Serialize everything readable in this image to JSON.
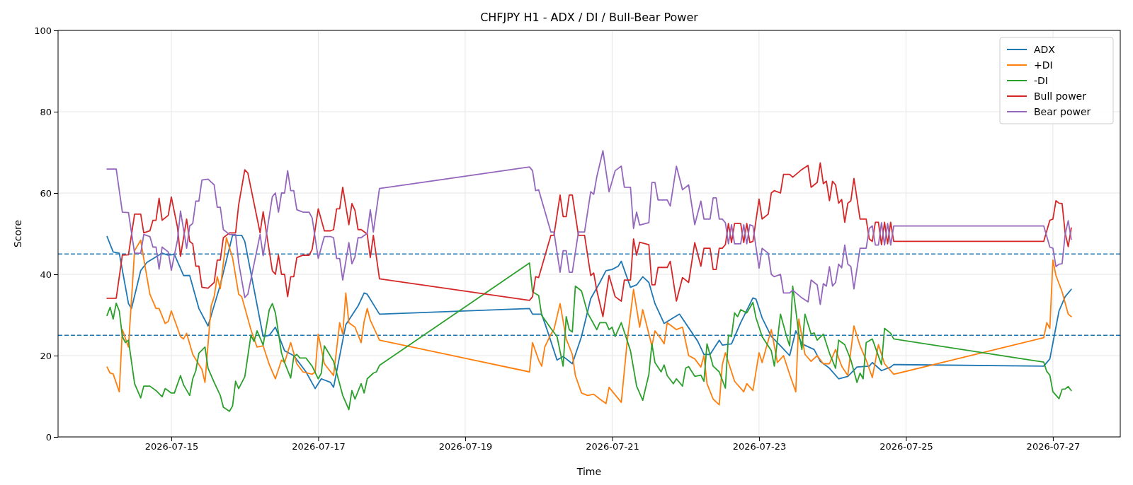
{
  "chart_data": {
    "type": "line",
    "title": "CHFJPY H1 - ADX / DI / Bull-Bear Power",
    "xlabel": "Time",
    "ylabel": "Score",
    "xlim": [
      "2026-07-13T11:00",
      "2026-07-27T22:00"
    ],
    "ylim": [
      0,
      100
    ],
    "xticks": [
      "2026-07-15",
      "2026-07-17",
      "2026-07-19",
      "2026-07-21",
      "2026-07-23",
      "2026-07-25",
      "2026-07-27"
    ],
    "yticks": [
      0,
      20,
      40,
      60,
      80,
      100
    ],
    "grid": true,
    "legend": "top right",
    "ref_lines": [
      {
        "axis": "y",
        "value": 45,
        "color": "#1f77b4",
        "line_style": "dashed"
      },
      {
        "axis": "y",
        "value": 25,
        "color": "#1f77b4",
        "line_style": "dashed"
      }
    ],
    "series": [
      {
        "name": "ADX",
        "color": "#1f77b4",
        "x": [
          "2026-07-14T03:00",
          "2026-07-14T05:00",
          "2026-07-14T07:00",
          "2026-07-14T10:00",
          "2026-07-14T11:00",
          "2026-07-14T14:00",
          "2026-07-14T16:00",
          "2026-07-14T21:00",
          "2026-07-14T23:00",
          "2026-07-15T01:00",
          "2026-07-15T04:00",
          "2026-07-15T06:00",
          "2026-07-15T09:00",
          "2026-07-15T12:00",
          "2026-07-15T16:00",
          "2026-07-15T20:00",
          "2026-07-15T23:00",
          "2026-07-16T00:00",
          "2026-07-16T06:00",
          "2026-07-16T08:00",
          "2026-07-16T10:00",
          "2026-07-16T13:00",
          "2026-07-16T16:00",
          "2026-07-16T20:00",
          "2026-07-16T23:00",
          "2026-07-17T01:00",
          "2026-07-17T04:00",
          "2026-07-17T05:00",
          "2026-07-17T09:00",
          "2026-07-17T13:00",
          "2026-07-17T15:00",
          "2026-07-17T16:00",
          "2026-07-17T20:00",
          "2026-07-19T21:00",
          "2026-07-19T22:00",
          "2026-07-20T01:00",
          "2026-07-20T03:00",
          "2026-07-20T06:00",
          "2026-07-20T08:00",
          "2026-07-20T11:00",
          "2026-07-20T14:00",
          "2026-07-20T17:00",
          "2026-07-20T20:00",
          "2026-07-20T22:00",
          "2026-07-21T00:00",
          "2026-07-21T02:00",
          "2026-07-21T03:00",
          "2026-07-21T06:00",
          "2026-07-21T08:00",
          "2026-07-21T10:00",
          "2026-07-21T12:00",
          "2026-07-21T14:00",
          "2026-07-21T17:00",
          "2026-07-21T20:00",
          "2026-07-21T22:00",
          "2026-07-22T04:00",
          "2026-07-22T06:00",
          "2026-07-22T08:00",
          "2026-07-22T11:00",
          "2026-07-22T12:00",
          "2026-07-22T15:00",
          "2026-07-22T18:00",
          "2026-07-22T22:00",
          "2026-07-22T23:00",
          "2026-07-23T01:00",
          "2026-07-23T04:00",
          "2026-07-23T07:00",
          "2026-07-23T10:00",
          "2026-07-23T12:00",
          "2026-07-23T14:00",
          "2026-07-23T18:00",
          "2026-07-23T20:00",
          "2026-07-23T23:00",
          "2026-07-24T02:00",
          "2026-07-24T05:00",
          "2026-07-24T08:00",
          "2026-07-24T12:00",
          "2026-07-24T13:00",
          "2026-07-24T16:00",
          "2026-07-24T19:00",
          "2026-07-24T20:00",
          "2026-07-26T21:00",
          "2026-07-26T23:00",
          "2026-07-27T02:00",
          "2026-07-27T04:00",
          "2026-07-27T06:00"
        ],
        "values": [
          49.3,
          45.5,
          45.2,
          32.8,
          31.6,
          40.9,
          42.9,
          45.2,
          44.7,
          44.9,
          39.7,
          39.7,
          31.6,
          27.3,
          37.4,
          49.6,
          49.6,
          48.1,
          24.7,
          25.0,
          27.0,
          21.2,
          20.0,
          16.0,
          11.9,
          14.3,
          13.4,
          12.2,
          27.6,
          32.2,
          35.4,
          35.1,
          30.2,
          31.6,
          30.2,
          30.2,
          25.8,
          18.9,
          19.8,
          18.0,
          24.7,
          34.0,
          38.0,
          40.9,
          41.2,
          42.0,
          43.2,
          36.8,
          37.4,
          39.4,
          38.0,
          32.8,
          27.9,
          29.3,
          30.2,
          23.5,
          20.3,
          20.3,
          23.8,
          22.6,
          22.9,
          28.1,
          34.2,
          33.9,
          29.3,
          24.7,
          22.4,
          20.0,
          26.1,
          22.9,
          21.5,
          18.6,
          16.9,
          14.3,
          14.9,
          17.2,
          17.4,
          18.3,
          16.3,
          17.2,
          17.8,
          17.4,
          19.2,
          31.0,
          34.5,
          36.3
        ]
      },
      {
        "name": "+DI",
        "color": "#ff7f0e",
        "x": [
          "2026-07-14T03:00",
          "2026-07-14T04:00",
          "2026-07-14T05:00",
          "2026-07-14T07:00",
          "2026-07-14T08:00",
          "2026-07-14T10:00",
          "2026-07-14T12:00",
          "2026-07-14T14:00",
          "2026-07-14T15:00",
          "2026-07-14T17:00",
          "2026-07-14T19:00",
          "2026-07-14T20:00",
          "2026-07-14T22:00",
          "2026-07-14T23:00",
          "2026-07-15T00:00",
          "2026-07-15T03:00",
          "2026-07-15T04:00",
          "2026-07-15T05:00",
          "2026-07-15T07:00",
          "2026-07-15T10:00",
          "2026-07-15T11:00",
          "2026-07-15T13:00",
          "2026-07-15T14:00",
          "2026-07-15T15:00",
          "2026-07-15T16:00",
          "2026-07-15T18:00",
          "2026-07-15T20:00",
          "2026-07-15T22:00",
          "2026-07-15T23:00",
          "2026-07-16T02:00",
          "2026-07-16T04:00",
          "2026-07-16T06:00",
          "2026-07-16T08:00",
          "2026-07-16T10:00",
          "2026-07-16T12:00",
          "2026-07-16T13:00",
          "2026-07-16T15:00",
          "2026-07-16T17:00",
          "2026-07-16T19:00",
          "2026-07-16T22:00",
          "2026-07-16T23:00",
          "2026-07-17T00:00",
          "2026-07-17T02:00",
          "2026-07-17T05:00",
          "2026-07-17T07:00",
          "2026-07-17T08:00",
          "2026-07-17T09:00",
          "2026-07-17T10:00",
          "2026-07-17T12:00",
          "2026-07-17T14:00",
          "2026-07-17T15:00",
          "2026-07-17T16:00",
          "2026-07-17T17:00",
          "2026-07-17T20:00",
          "2026-07-19T21:00",
          "2026-07-19T22:00",
          "2026-07-20T00:00",
          "2026-07-20T01:00",
          "2026-07-20T02:00",
          "2026-07-20T04:00",
          "2026-07-20T05:00",
          "2026-07-20T07:00",
          "2026-07-20T09:00",
          "2026-07-20T11:00",
          "2026-07-20T12:00",
          "2026-07-20T14:00",
          "2026-07-20T16:00",
          "2026-07-20T18:00",
          "2026-07-20T20:00",
          "2026-07-20T22:00",
          "2026-07-20T23:00",
          "2026-07-21T03:00",
          "2026-07-21T05:00",
          "2026-07-21T07:00",
          "2026-07-21T09:00",
          "2026-07-21T10:00",
          "2026-07-21T13:00",
          "2026-07-21T14:00",
          "2026-07-21T16:00",
          "2026-07-21T17:00",
          "2026-07-21T18:00",
          "2026-07-21T21:00",
          "2026-07-21T23:00",
          "2026-07-22T01:00",
          "2026-07-22T03:00",
          "2026-07-22T05:00",
          "2026-07-22T06:00",
          "2026-07-22T07:00",
          "2026-07-22T09:00",
          "2026-07-22T11:00",
          "2026-07-22T12:00",
          "2026-07-22T13:00",
          "2026-07-22T16:00",
          "2026-07-22T19:00",
          "2026-07-22T20:00",
          "2026-07-22T22:00",
          "2026-07-23T00:00",
          "2026-07-23T01:00",
          "2026-07-23T04:00",
          "2026-07-23T06:00",
          "2026-07-23T08:00",
          "2026-07-23T10:00",
          "2026-07-23T12:00",
          "2026-07-23T13:00",
          "2026-07-23T15:00",
          "2026-07-23T17:00",
          "2026-07-23T19:00",
          "2026-07-23T21:00",
          "2026-07-23T23:00",
          "2026-07-24T01:00",
          "2026-07-24T03:00",
          "2026-07-24T05:00",
          "2026-07-24T07:00",
          "2026-07-24T09:00",
          "2026-07-24T11:00",
          "2026-07-24T13:00",
          "2026-07-24T15:00",
          "2026-07-24T17:00",
          "2026-07-24T20:00",
          "2026-07-26T21:00",
          "2026-07-26T22:00",
          "2026-07-26T23:00",
          "2026-07-27T00:00",
          "2026-07-27T01:00",
          "2026-07-27T03:00",
          "2026-07-27T05:00",
          "2026-07-27T06:00"
        ],
        "values": [
          17.2,
          15.7,
          15.5,
          11.1,
          26.4,
          22.1,
          45.8,
          48.4,
          43.8,
          35.1,
          31.6,
          31.6,
          27.9,
          28.4,
          31.0,
          24.7,
          24.1,
          25.5,
          20.3,
          16.6,
          13.4,
          32.2,
          34.5,
          39.4,
          36.5,
          49.0,
          44.1,
          35.1,
          34.5,
          26.4,
          22.1,
          22.4,
          17.8,
          14.3,
          18.9,
          18.3,
          23.2,
          18.0,
          16.0,
          15.4,
          16.0,
          25.3,
          18.0,
          15.1,
          28.1,
          25.3,
          35.4,
          28.1,
          27.0,
          23.2,
          28.4,
          31.6,
          28.7,
          23.8,
          16.0,
          23.2,
          18.9,
          17.4,
          22.1,
          25.3,
          26.4,
          32.8,
          24.1,
          20.3,
          15.1,
          10.8,
          10.2,
          10.5,
          9.3,
          8.2,
          12.2,
          8.5,
          24.1,
          36.3,
          27.0,
          31.3,
          22.4,
          26.1,
          24.1,
          22.9,
          28.1,
          26.4,
          27.0,
          20.0,
          19.2,
          17.2,
          20.0,
          13.1,
          9.3,
          7.9,
          17.8,
          20.7,
          13.7,
          11.1,
          13.1,
          11.4,
          20.7,
          18.3,
          26.4,
          18.3,
          20.0,
          15.4,
          11.1,
          29.0,
          20.3,
          18.6,
          20.0,
          18.0,
          18.0,
          21.5,
          17.4,
          15.1,
          27.3,
          22.4,
          18.9,
          14.6,
          22.7,
          18.0,
          15.4,
          24.4,
          28.1,
          26.7,
          43.5,
          39.7,
          35.7,
          30.2,
          29.6
        ]
      },
      {
        "name": "-DI",
        "color": "#2ca02c",
        "x": [
          "2026-07-14T03:00",
          "2026-07-14T04:00",
          "2026-07-14T05:00",
          "2026-07-14T06:00",
          "2026-07-14T07:00",
          "2026-07-14T08:00",
          "2026-07-14T09:00",
          "2026-07-14T10:00",
          "2026-07-14T12:00",
          "2026-07-14T14:00",
          "2026-07-14T15:00",
          "2026-07-14T17:00",
          "2026-07-14T19:00",
          "2026-07-14T21:00",
          "2026-07-14T22:00",
          "2026-07-15T00:00",
          "2026-07-15T01:00",
          "2026-07-15T03:00",
          "2026-07-15T04:00",
          "2026-07-15T06:00",
          "2026-07-15T07:00",
          "2026-07-15T08:00",
          "2026-07-15T09:00",
          "2026-07-15T11:00",
          "2026-07-15T12:00",
          "2026-07-15T14:00",
          "2026-07-15T16:00",
          "2026-07-15T17:00",
          "2026-07-15T19:00",
          "2026-07-15T20:00",
          "2026-07-15T21:00",
          "2026-07-15T22:00",
          "2026-07-16T00:00",
          "2026-07-16T02:00",
          "2026-07-16T03:00",
          "2026-07-16T04:00",
          "2026-07-16T06:00",
          "2026-07-16T08:00",
          "2026-07-16T09:00",
          "2026-07-16T10:00",
          "2026-07-16T12:00",
          "2026-07-16T13:00",
          "2026-07-16T15:00",
          "2026-07-16T16:00",
          "2026-07-16T17:00",
          "2026-07-16T18:00",
          "2026-07-16T20:00",
          "2026-07-16T22:00",
          "2026-07-17T00:00",
          "2026-07-17T01:00",
          "2026-07-17T02:00",
          "2026-07-17T05:00",
          "2026-07-17T08:00",
          "2026-07-17T10:00",
          "2026-07-17T11:00",
          "2026-07-17T12:00",
          "2026-07-17T14:00",
          "2026-07-17T15:00",
          "2026-07-17T16:00",
          "2026-07-17T18:00",
          "2026-07-17T19:00",
          "2026-07-17T20:00",
          "2026-07-19T21:00",
          "2026-07-19T22:00",
          "2026-07-20T00:00",
          "2026-07-20T01:00",
          "2026-07-20T04:00",
          "2026-07-20T06:00",
          "2026-07-20T08:00",
          "2026-07-20T09:00",
          "2026-07-20T10:00",
          "2026-07-20T11:00",
          "2026-07-20T12:00",
          "2026-07-20T14:00",
          "2026-07-20T16:00",
          "2026-07-20T19:00",
          "2026-07-20T20:00",
          "2026-07-20T22:00",
          "2026-07-20T23:00",
          "2026-07-21T00:00",
          "2026-07-21T01:00",
          "2026-07-21T03:00",
          "2026-07-21T06:00",
          "2026-07-21T08:00",
          "2026-07-21T10:00",
          "2026-07-21T12:00",
          "2026-07-21T13:00",
          "2026-07-21T14:00",
          "2026-07-21T16:00",
          "2026-07-21T17:00",
          "2026-07-21T18:00",
          "2026-07-21T20:00",
          "2026-07-21T21:00",
          "2026-07-21T23:00",
          "2026-07-22T00:00",
          "2026-07-22T01:00",
          "2026-07-22T03:00",
          "2026-07-22T05:00",
          "2026-07-22T06:00",
          "2026-07-22T07:00",
          "2026-07-22T09:00",
          "2026-07-22T11:00",
          "2026-07-22T13:00",
          "2026-07-22T14:00",
          "2026-07-22T15:00",
          "2026-07-22T16:00",
          "2026-07-22T17:00",
          "2026-07-22T18:00",
          "2026-07-22T20:00",
          "2026-07-22T22:00",
          "2026-07-22T23:00",
          "2026-07-23T01:00",
          "2026-07-23T04:00",
          "2026-07-23T05:00",
          "2026-07-23T07:00",
          "2026-07-23T09:00",
          "2026-07-23T10:00",
          "2026-07-23T11:00",
          "2026-07-23T13:00",
          "2026-07-23T14:00",
          "2026-07-23T15:00",
          "2026-07-23T17:00",
          "2026-07-23T18:00",
          "2026-07-23T19:00",
          "2026-07-23T21:00",
          "2026-07-23T23:00",
          "2026-07-24T01:00",
          "2026-07-24T02:00",
          "2026-07-24T04:00",
          "2026-07-24T06:00",
          "2026-07-24T08:00",
          "2026-07-24T09:00",
          "2026-07-24T10:00",
          "2026-07-24T11:00",
          "2026-07-24T13:00",
          "2026-07-24T16:00",
          "2026-07-24T17:00",
          "2026-07-24T19:00",
          "2026-07-24T20:00",
          "2026-07-26T21:00",
          "2026-07-26T22:00",
          "2026-07-26T23:00",
          "2026-07-27T00:00",
          "2026-07-27T02:00",
          "2026-07-27T03:00",
          "2026-07-27T04:00",
          "2026-07-27T05:00",
          "2026-07-27T06:00"
        ],
        "values": [
          29.9,
          31.9,
          29.0,
          32.9,
          31.0,
          24.7,
          23.2,
          23.8,
          13.1,
          9.6,
          12.5,
          12.5,
          11.4,
          9.9,
          11.9,
          10.8,
          10.8,
          15.1,
          12.8,
          10.2,
          14.3,
          16.3,
          20.6,
          22.1,
          16.9,
          13.4,
          10.2,
          7.3,
          6.3,
          7.6,
          13.7,
          11.9,
          14.8,
          25.0,
          23.5,
          26.1,
          22.6,
          31.3,
          32.8,
          30.5,
          20.6,
          18.3,
          14.5,
          19.7,
          20.3,
          19.4,
          19.4,
          17.4,
          14.3,
          15.7,
          22.4,
          18.6,
          10.2,
          6.7,
          11.4,
          9.3,
          13.1,
          10.8,
          14.3,
          15.7,
          16.0,
          17.6,
          42.8,
          35.7,
          34.8,
          29.9,
          26.7,
          24.7,
          17.4,
          29.6,
          26.4,
          25.8,
          37.1,
          35.9,
          30.5,
          26.4,
          28.1,
          28.1,
          26.4,
          27.0,
          24.7,
          28.1,
          21.2,
          12.5,
          9.0,
          15.4,
          22.9,
          18.3,
          16.0,
          17.7,
          15.1,
          13.1,
          14.3,
          12.5,
          16.9,
          17.3,
          14.9,
          15.2,
          13.7,
          22.9,
          17.4,
          16.0,
          12.0,
          25.0,
          24.7,
          30.5,
          29.6,
          31.3,
          30.5,
          33.1,
          29.3,
          24.7,
          21.2,
          17.4,
          30.2,
          24.7,
          22.4,
          37.1,
          25.3,
          21.5,
          30.2,
          25.3,
          25.6,
          23.8,
          25.3,
          20.6,
          16.9,
          23.8,
          22.7,
          18.9,
          13.4,
          15.7,
          14.3,
          23.2,
          24.1,
          17.8,
          26.7,
          25.5,
          24.1,
          18.4,
          16.1,
          15.2,
          11.1,
          9.4,
          11.7,
          11.8,
          12.4,
          11.4
        ]
      },
      {
        "name": "Bull power",
        "color": "#d62728",
        "x": [
          "2026-07-14T03:00",
          "2026-07-14T06:00",
          "2026-07-14T08:00",
          "2026-07-14T10:00",
          "2026-07-14T12:00",
          "2026-07-14T14:00",
          "2026-07-14T15:00",
          "2026-07-14T17:00",
          "2026-07-14T18:00",
          "2026-07-14T19:00",
          "2026-07-14T20:00",
          "2026-07-14T21:00",
          "2026-07-14T23:00",
          "2026-07-15T00:00",
          "2026-07-15T02:00",
          "2026-07-15T03:00",
          "2026-07-15T05:00",
          "2026-07-15T06:00",
          "2026-07-15T07:00",
          "2026-07-15T08:00",
          "2026-07-15T09:00",
          "2026-07-15T10:00",
          "2026-07-15T12:00",
          "2026-07-15T14:00",
          "2026-07-15T15:00",
          "2026-07-15T16:00",
          "2026-07-15T17:00",
          "2026-07-15T19:00",
          "2026-07-15T21:00",
          "2026-07-15T22:00",
          "2026-07-16T00:00",
          "2026-07-16T01:00",
          "2026-07-16T05:00",
          "2026-07-16T06:00",
          "2026-07-16T09:00",
          "2026-07-16T10:00",
          "2026-07-16T11:00",
          "2026-07-16T12:00",
          "2026-07-16T13:00",
          "2026-07-16T14:00",
          "2026-07-16T15:00",
          "2026-07-16T16:00",
          "2026-07-16T17:00",
          "2026-07-16T18:00",
          "2026-07-16T19:00",
          "2026-07-16T21:00",
          "2026-07-16T22:00",
          "2026-07-17T00:00",
          "2026-07-17T02:00",
          "2026-07-17T04:00",
          "2026-07-17T05:00",
          "2026-07-17T06:00",
          "2026-07-17T07:00",
          "2026-07-17T08:00",
          "2026-07-17T10:00",
          "2026-07-17T11:00",
          "2026-07-17T12:00",
          "2026-07-17T13:00",
          "2026-07-17T14:00",
          "2026-07-17T16:00",
          "2026-07-17T17:00",
          "2026-07-17T18:00",
          "2026-07-17T20:00",
          "2026-07-19T21:00",
          "2026-07-19T22:00",
          "2026-07-19T23:00",
          "2026-07-20T00:00",
          "2026-07-20T02:00",
          "2026-07-20T04:00",
          "2026-07-20T05:00",
          "2026-07-20T07:00",
          "2026-07-20T08:00",
          "2026-07-20T09:00",
          "2026-07-20T10:00",
          "2026-07-20T11:00",
          "2026-07-20T13:00",
          "2026-07-20T15:00",
          "2026-07-20T17:00",
          "2026-07-20T18:00",
          "2026-07-20T19:00",
          "2026-07-20T21:00",
          "2026-07-20T23:00",
          "2026-07-21T01:00",
          "2026-07-21T03:00",
          "2026-07-21T04:00",
          "2026-07-21T06:00",
          "2026-07-21T07:00",
          "2026-07-21T08:00",
          "2026-07-21T09:00",
          "2026-07-21T12:00",
          "2026-07-21T13:00",
          "2026-07-21T14:00",
          "2026-07-21T15:00",
          "2026-07-21T18:00",
          "2026-07-21T19:00",
          "2026-07-21T21:00",
          "2026-07-21T23:00",
          "2026-07-22T01:00",
          "2026-07-22T03:00",
          "2026-07-22T05:00",
          "2026-07-22T06:00",
          "2026-07-22T08:00",
          "2026-07-22T09:00",
          "2026-07-22T10:00",
          "2026-07-22T11:00",
          "2026-07-22T12:00",
          "2026-07-22T13:00",
          "2026-07-22T14:00",
          "2026-07-22T15:00",
          "2026-07-22T16:00",
          "2026-07-22T18:00",
          "2026-07-22T19:00",
          "2026-07-22T20:00",
          "2026-07-22T21:00",
          "2026-07-22T22:00",
          "2026-07-22T23:00",
          "2026-07-23T00:00",
          "2026-07-23T01:00",
          "2026-07-23T03:00",
          "2026-07-23T04:00",
          "2026-07-23T05:00",
          "2026-07-23T07:00",
          "2026-07-23T08:00",
          "2026-07-23T10:00",
          "2026-07-23T11:00",
          "2026-07-23T14:00",
          "2026-07-23T16:00",
          "2026-07-23T17:00",
          "2026-07-23T19:00",
          "2026-07-23T20:00",
          "2026-07-23T21:00",
          "2026-07-23T22:00",
          "2026-07-23T23:00",
          "2026-07-24T00:00",
          "2026-07-24T01:00",
          "2026-07-24T02:00",
          "2026-07-24T03:00",
          "2026-07-24T04:00",
          "2026-07-24T05:00",
          "2026-07-24T06:00",
          "2026-07-24T07:00",
          "2026-07-24T09:00",
          "2026-07-24T11:00",
          "2026-07-24T12:00",
          "2026-07-24T13:00",
          "2026-07-24T14:00",
          "2026-07-24T15:00",
          "2026-07-24T16:00",
          "2026-07-24T17:00",
          "2026-07-24T18:00",
          "2026-07-24T19:00",
          "2026-07-24T20:00",
          "2026-07-26T21:00",
          "2026-07-26T23:00",
          "2026-07-27T00:00",
          "2026-07-27T01:00",
          "2026-07-27T02:00",
          "2026-07-27T03:00",
          "2026-07-27T04:00",
          "2026-07-27T05:00",
          "2026-07-27T06:00"
        ],
        "values": [
          34.1,
          34.1,
          44.7,
          44.8,
          54.8,
          54.8,
          50.2,
          50.7,
          53.3,
          53.3,
          58.7,
          53.3,
          54.5,
          59.0,
          51.6,
          44.4,
          53.6,
          48.1,
          47.5,
          42.0,
          42.0,
          36.8,
          36.6,
          38.0,
          43.5,
          43.5,
          49.0,
          50.2,
          50.2,
          57.1,
          65.7,
          64.9,
          50.2,
          55.4,
          40.9,
          40.0,
          44.7,
          40.0,
          40.0,
          34.5,
          39.4,
          39.4,
          44.1,
          44.4,
          44.7,
          44.7,
          46.1,
          56.1,
          50.7,
          50.7,
          51.0,
          56.1,
          56.1,
          61.4,
          52.2,
          57.4,
          55.7,
          51.0,
          51.0,
          49.9,
          44.1,
          49.6,
          38.9,
          33.6,
          34.5,
          39.4,
          39.2,
          44.4,
          49.6,
          49.6,
          59.5,
          54.2,
          54.2,
          59.5,
          59.5,
          49.6,
          49.6,
          39.7,
          40.3,
          36.0,
          29.6,
          39.7,
          34.5,
          33.4,
          38.6,
          38.6,
          48.7,
          44.7,
          47.9,
          47.3,
          37.4,
          37.4,
          41.7,
          41.7,
          43.2,
          33.4,
          39.2,
          38.0,
          47.8,
          42.0,
          46.4,
          46.4,
          41.2,
          41.2,
          46.4,
          46.4,
          47.3,
          52.5,
          47.8,
          52.5,
          52.5,
          47.8,
          52.5,
          47.8,
          48.1,
          53.3,
          58.5,
          53.6,
          54.8,
          60.0,
          60.6,
          60.0,
          64.6,
          64.6,
          63.9,
          65.8,
          66.8,
          61.4,
          62.6,
          67.4,
          62.3,
          62.9,
          58.1,
          62.9,
          62.0,
          57.5,
          58.4,
          52.8,
          57.5,
          58.1,
          63.6,
          53.6,
          53.6,
          48.7,
          48.1,
          52.8,
          52.8,
          47.3,
          52.8,
          47.5,
          52.8,
          48.1,
          48.1,
          53.3,
          53.6,
          58.1,
          57.5,
          57.4,
          50.2,
          46.8,
          51.4
        ]
      },
      {
        "name": "Bear power",
        "color": "#9467bd",
        "x": [
          "2026-07-14T03:00",
          "2026-07-14T06:00",
          "2026-07-14T08:00",
          "2026-07-14T10:00",
          "2026-07-14T12:00",
          "2026-07-14T14:00",
          "2026-07-14T15:00",
          "2026-07-14T17:00",
          "2026-07-14T18:00",
          "2026-07-14T19:00",
          "2026-07-14T20:00",
          "2026-07-14T21:00",
          "2026-07-14T23:00",
          "2026-07-15T00:00",
          "2026-07-15T02:00",
          "2026-07-15T03:00",
          "2026-07-15T05:00",
          "2026-07-15T06:00",
          "2026-07-15T07:00",
          "2026-07-15T08:00",
          "2026-07-15T09:00",
          "2026-07-15T10:00",
          "2026-07-15T12:00",
          "2026-07-15T14:00",
          "2026-07-15T15:00",
          "2026-07-15T16:00",
          "2026-07-15T17:00",
          "2026-07-15T19:00",
          "2026-07-15T21:00",
          "2026-07-15T22:00",
          "2026-07-16T00:00",
          "2026-07-16T01:00",
          "2026-07-16T05:00",
          "2026-07-16T06:00",
          "2026-07-16T09:00",
          "2026-07-16T10:00",
          "2026-07-16T11:00",
          "2026-07-16T12:00",
          "2026-07-16T13:00",
          "2026-07-16T14:00",
          "2026-07-16T15:00",
          "2026-07-16T16:00",
          "2026-07-16T17:00",
          "2026-07-16T18:00",
          "2026-07-16T19:00",
          "2026-07-16T21:00",
          "2026-07-16T22:00",
          "2026-07-17T00:00",
          "2026-07-17T02:00",
          "2026-07-17T04:00",
          "2026-07-17T05:00",
          "2026-07-17T06:00",
          "2026-07-17T07:00",
          "2026-07-17T08:00",
          "2026-07-17T10:00",
          "2026-07-17T11:00",
          "2026-07-17T12:00",
          "2026-07-17T13:00",
          "2026-07-17T14:00",
          "2026-07-17T16:00",
          "2026-07-17T17:00",
          "2026-07-17T18:00",
          "2026-07-17T20:00",
          "2026-07-19T21:00",
          "2026-07-19T22:00",
          "2026-07-19T23:00",
          "2026-07-20T00:00",
          "2026-07-20T02:00",
          "2026-07-20T04:00",
          "2026-07-20T05:00",
          "2026-07-20T07:00",
          "2026-07-20T08:00",
          "2026-07-20T09:00",
          "2026-07-20T10:00",
          "2026-07-20T11:00",
          "2026-07-20T13:00",
          "2026-07-20T15:00",
          "2026-07-20T17:00",
          "2026-07-20T18:00",
          "2026-07-20T19:00",
          "2026-07-20T21:00",
          "2026-07-20T23:00",
          "2026-07-21T01:00",
          "2026-07-21T03:00",
          "2026-07-21T04:00",
          "2026-07-21T06:00",
          "2026-07-21T07:00",
          "2026-07-21T08:00",
          "2026-07-21T09:00",
          "2026-07-21T12:00",
          "2026-07-21T13:00",
          "2026-07-21T14:00",
          "2026-07-21T15:00",
          "2026-07-21T18:00",
          "2026-07-21T19:00",
          "2026-07-21T21:00",
          "2026-07-21T23:00",
          "2026-07-22T01:00",
          "2026-07-22T03:00",
          "2026-07-22T05:00",
          "2026-07-22T06:00",
          "2026-07-22T08:00",
          "2026-07-22T09:00",
          "2026-07-22T10:00",
          "2026-07-22T11:00",
          "2026-07-22T12:00",
          "2026-07-22T13:00",
          "2026-07-22T14:00",
          "2026-07-22T15:00",
          "2026-07-22T16:00",
          "2026-07-22T18:00",
          "2026-07-22T19:00",
          "2026-07-22T20:00",
          "2026-07-22T21:00",
          "2026-07-22T22:00",
          "2026-07-22T23:00",
          "2026-07-23T00:00",
          "2026-07-23T01:00",
          "2026-07-23T03:00",
          "2026-07-23T04:00",
          "2026-07-23T05:00",
          "2026-07-23T07:00",
          "2026-07-23T08:00",
          "2026-07-23T10:00",
          "2026-07-23T11:00",
          "2026-07-23T14:00",
          "2026-07-23T16:00",
          "2026-07-23T17:00",
          "2026-07-23T19:00",
          "2026-07-23T20:00",
          "2026-07-23T21:00",
          "2026-07-23T22:00",
          "2026-07-23T23:00",
          "2026-07-24T00:00",
          "2026-07-24T01:00",
          "2026-07-24T02:00",
          "2026-07-24T03:00",
          "2026-07-24T04:00",
          "2026-07-24T05:00",
          "2026-07-24T06:00",
          "2026-07-24T07:00",
          "2026-07-24T09:00",
          "2026-07-24T11:00",
          "2026-07-24T12:00",
          "2026-07-24T13:00",
          "2026-07-24T14:00",
          "2026-07-24T15:00",
          "2026-07-24T16:00",
          "2026-07-24T17:00",
          "2026-07-24T18:00",
          "2026-07-24T19:00",
          "2026-07-24T20:00",
          "2026-07-26T21:00",
          "2026-07-26T23:00",
          "2026-07-27T00:00",
          "2026-07-27T01:00",
          "2026-07-27T02:00",
          "2026-07-27T03:00",
          "2026-07-27T04:00",
          "2026-07-27T05:00",
          "2026-07-27T06:00"
        ],
        "values": [
          65.9,
          65.9,
          55.3,
          55.2,
          45.2,
          45.2,
          49.8,
          49.3,
          46.7,
          46.7,
          41.3,
          46.7,
          45.5,
          41.0,
          48.4,
          55.6,
          46.4,
          51.9,
          52.5,
          58.0,
          58.0,
          63.2,
          63.4,
          62.0,
          56.5,
          56.5,
          51.0,
          49.8,
          49.8,
          42.9,
          34.3,
          35.1,
          49.8,
          44.6,
          59.1,
          60.0,
          55.3,
          60.0,
          60.0,
          65.5,
          60.6,
          60.6,
          55.9,
          55.6,
          55.3,
          55.3,
          53.9,
          43.9,
          49.3,
          49.3,
          49.0,
          43.9,
          43.9,
          38.6,
          47.8,
          42.6,
          44.3,
          49.0,
          49.0,
          50.1,
          55.9,
          50.4,
          61.1,
          66.4,
          65.5,
          60.6,
          60.8,
          55.6,
          50.4,
          50.4,
          40.5,
          45.8,
          45.8,
          40.5,
          40.5,
          50.4,
          50.4,
          60.3,
          59.7,
          64.0,
          70.4,
          60.3,
          65.5,
          66.6,
          61.4,
          61.4,
          51.3,
          55.3,
          52.1,
          52.7,
          62.6,
          62.6,
          58.3,
          58.3,
          56.8,
          66.6,
          60.8,
          62.0,
          52.2,
          58.0,
          53.6,
          53.6,
          58.8,
          58.8,
          53.6,
          53.6,
          52.7,
          47.5,
          52.2,
          47.5,
          47.5,
          52.2,
          47.5,
          52.2,
          51.9,
          46.7,
          41.5,
          46.4,
          45.2,
          40.0,
          39.4,
          40.0,
          35.4,
          35.4,
          36.1,
          34.2,
          33.2,
          38.6,
          37.4,
          32.6,
          37.7,
          37.1,
          41.9,
          37.1,
          38.0,
          42.5,
          41.6,
          47.2,
          42.5,
          41.9,
          36.4,
          46.4,
          46.4,
          51.3,
          51.9,
          47.2,
          47.2,
          52.7,
          47.2,
          52.5,
          47.2,
          51.9,
          51.9,
          46.7,
          46.4,
          41.9,
          42.5,
          42.6,
          49.8,
          53.2,
          48.6
        ]
      }
    ]
  }
}
